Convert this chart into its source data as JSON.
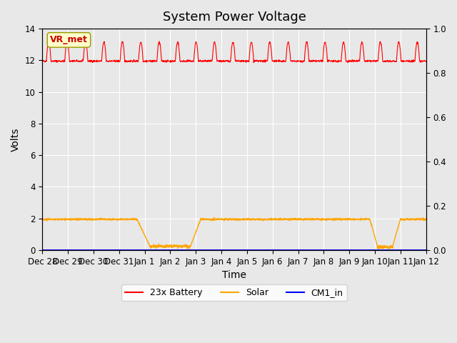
{
  "title": "System Power Voltage",
  "xlabel": "Time",
  "ylabel": "Volts",
  "background_color": "#e8e8e8",
  "plot_bg_color": "#e8e8e8",
  "ylim_left": [
    0,
    14
  ],
  "ylim_right": [
    0.0,
    1.0
  ],
  "yticks_left": [
    0,
    2,
    4,
    6,
    8,
    10,
    12,
    14
  ],
  "yticks_right": [
    0.0,
    0.2,
    0.4,
    0.6,
    0.8,
    1.0
  ],
  "xtick_labels": [
    "Dec 28",
    "Dec 29",
    "Dec 30",
    "Dec 31",
    "Jan 1",
    "Jan 2",
    "Jan 3",
    "Jan 4",
    "Jan 5",
    "Jan 6",
    "Jan 7",
    "Jan 8",
    "Jan 9",
    "Jan 10",
    "Jan 11",
    "Jan 12"
  ],
  "battery_color": "#ff0000",
  "solar_color": "#ffa500",
  "cm1_color": "#0000ff",
  "legend_labels": [
    "23x Battery",
    "Solar",
    "CM1_in"
  ],
  "vr_met_label": "VR_met",
  "vr_met_box_color": "#ffffcc",
  "vr_met_text_color": "#cc0000",
  "grid_color": "#ffffff",
  "title_fontsize": 13,
  "axis_label_fontsize": 10,
  "tick_fontsize": 8.5
}
